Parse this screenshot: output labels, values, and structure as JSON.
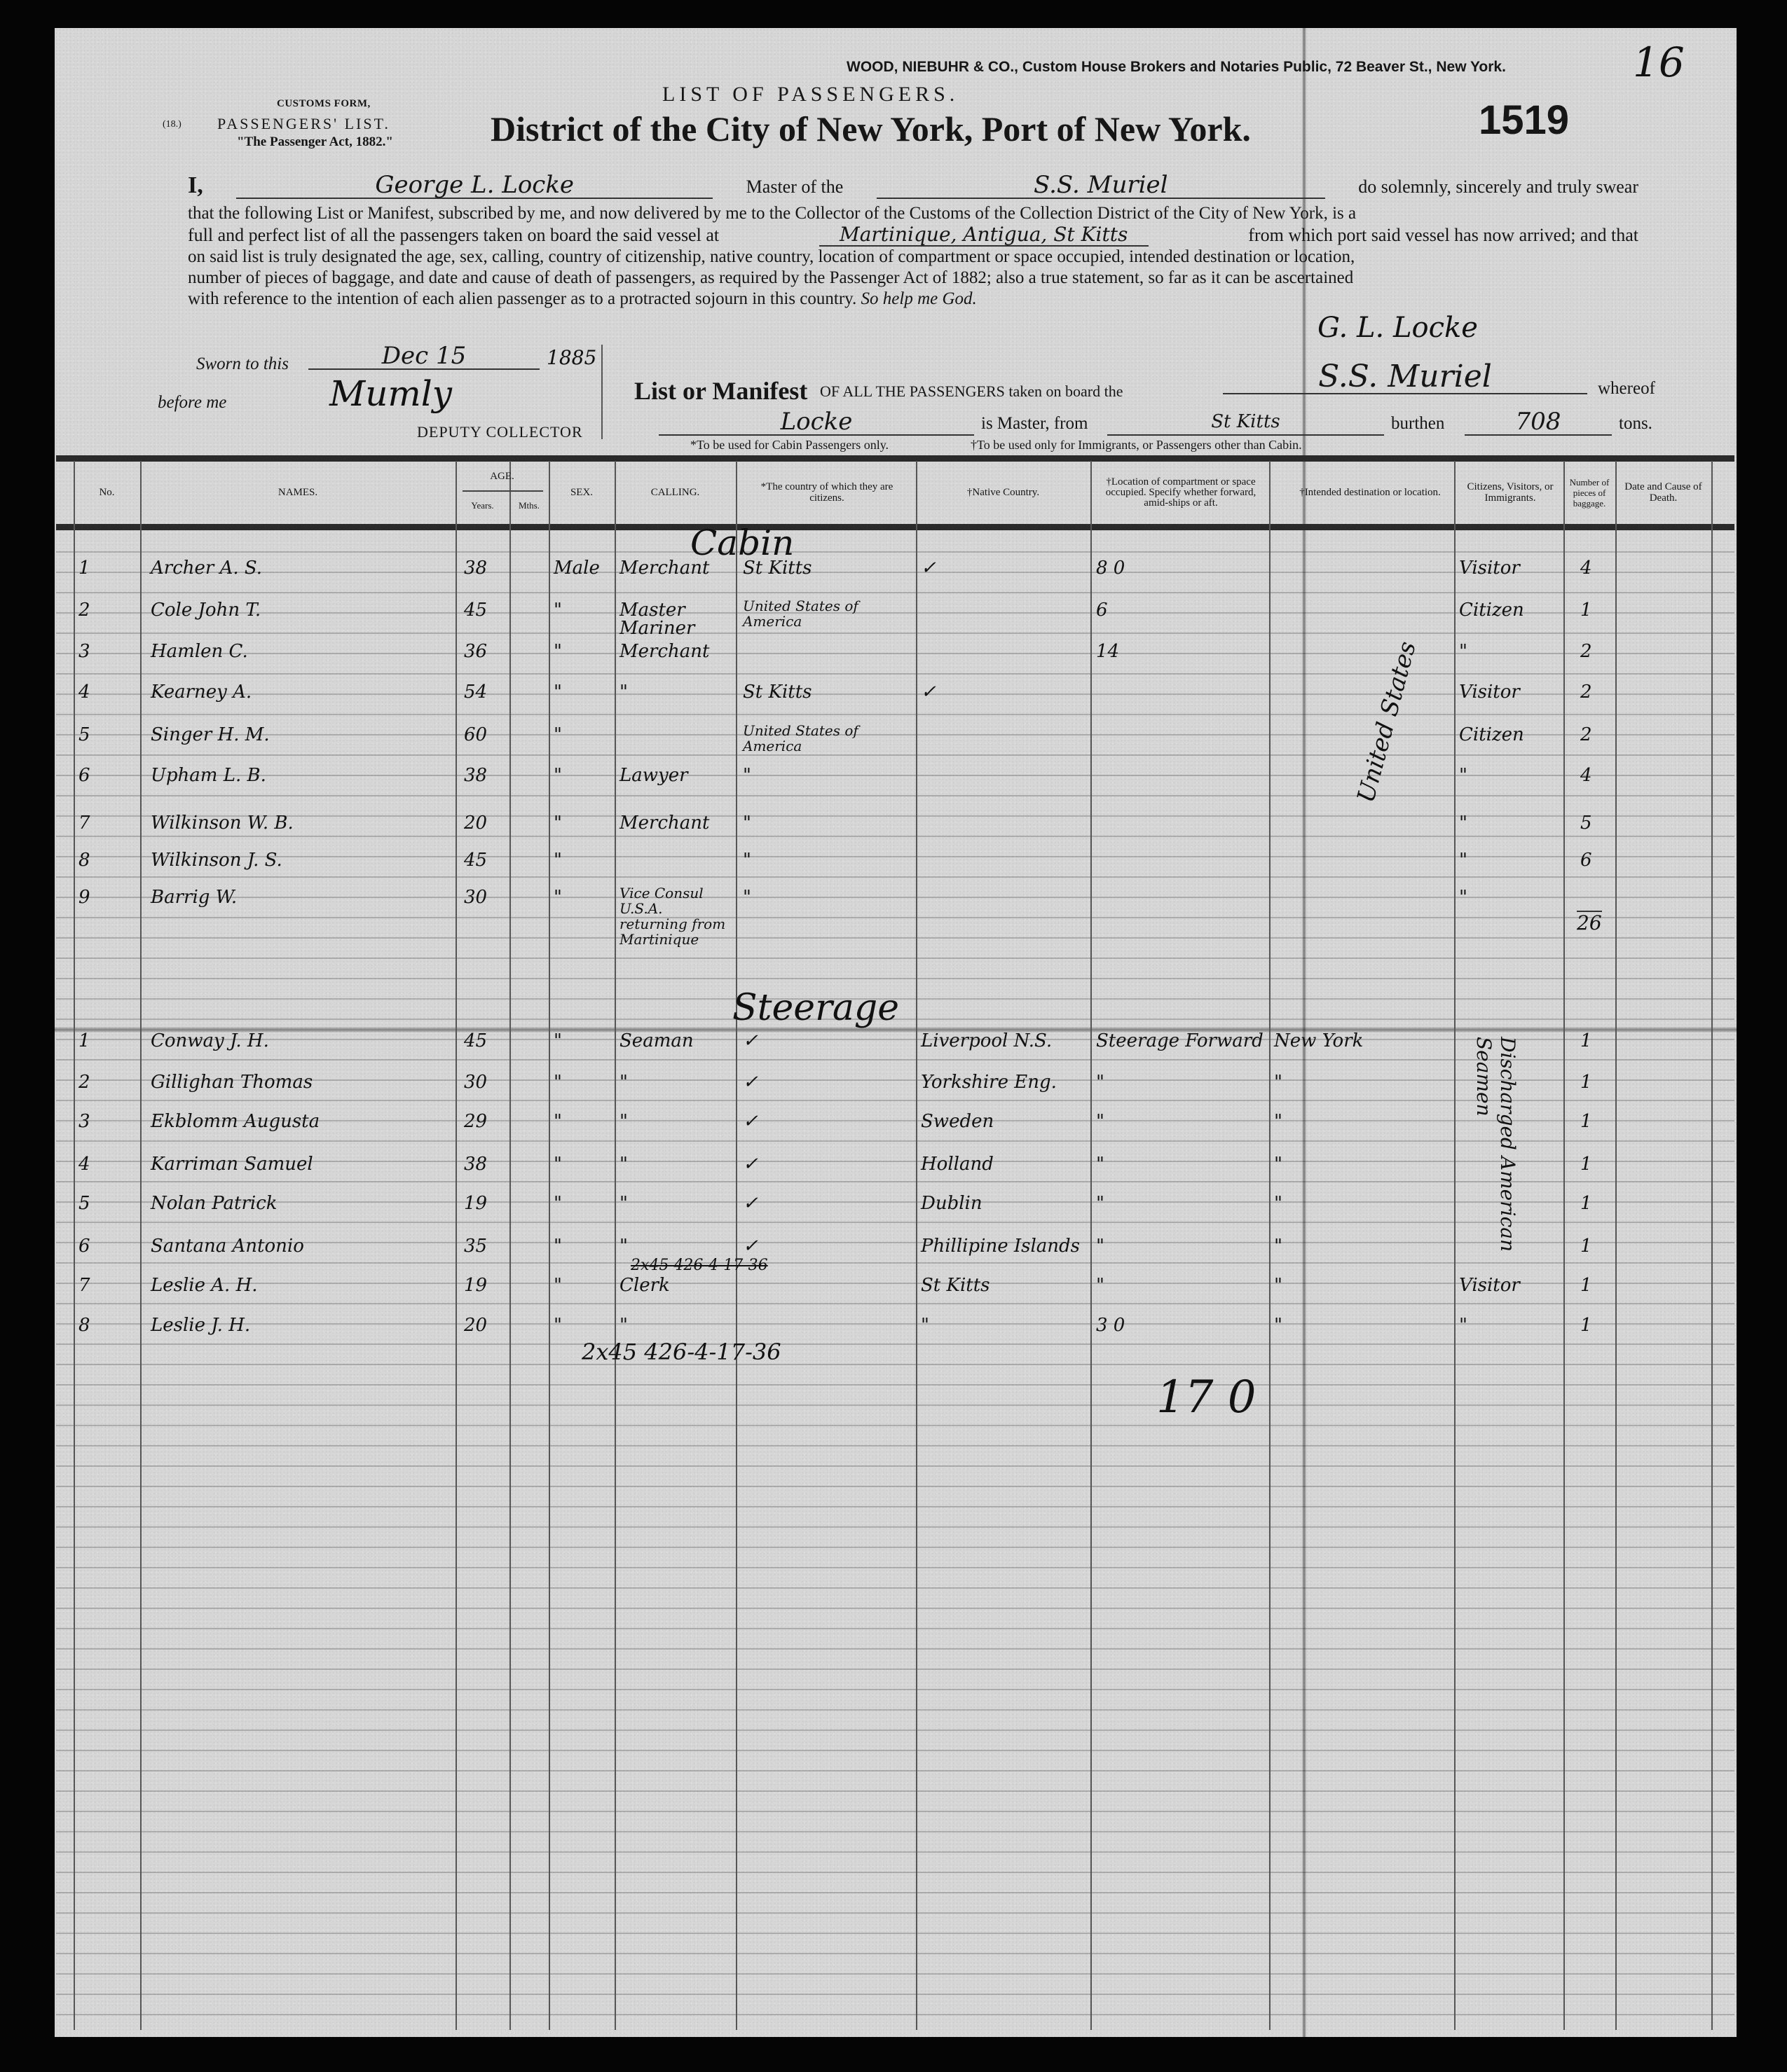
{
  "header": {
    "broker": "WOOD, NIEBUHR & CO., Custom House Brokers and Notaries Public, 72 Beaver St., New York.",
    "page_number": "16",
    "form_label": "CUSTOMS FORM,",
    "form_number": "(18.)",
    "form_name": "PASSENGERS' LIST.",
    "act": "\"The Passenger Act, 1882.\"",
    "list_title": "LIST OF PASSENGERS.",
    "district_title": "District of the City of New York, Port of New York.",
    "document_number": "1519"
  },
  "oath": {
    "prefix": "I,",
    "master_name": "George L. Locke",
    "master_of": "Master of the",
    "ship": "S.S. Muriel",
    "line1_end": "do solemnly, sincerely and truly swear",
    "line2": "that the following List or Manifest, subscribed by me, and now delivered by me to the Collector of the Customs of the Collection District of the City of New York, is a",
    "line3_start": "full and perfect list of all the passengers taken on board the said vessel at",
    "ports": "Martinique, Antigua, St Kitts",
    "line3_end": "from which port said vessel has now arrived; and that",
    "line4": "on said list is truly designated the age, sex, calling, country of citizenship, native country, location of compartment or space occupied, intended destination or location,",
    "line5": "number of pieces of baggage, and date and cause of death of passengers, as required by the Passenger Act of 1882; also a true statement, so far as it can be ascertained",
    "line6": "with reference to the intention of each alien passenger as to a protracted sojourn in this country.",
    "closing": "So help me God.",
    "master_signature": "G. L. Locke"
  },
  "sworn": {
    "label": "Sworn to this",
    "date": "Dec 15",
    "year": "1885",
    "before_me": "before me",
    "collector_signature": "Mumly",
    "title": "DEPUTY COLLECTOR"
  },
  "manifest": {
    "title": "List or Manifest",
    "of_all": "OF ALL THE PASSENGERS taken on board the",
    "ship": "S.S. Muriel",
    "whereof": "whereof",
    "master": "Locke",
    "is_master_from": "is Master, from",
    "from_port": "St Kitts",
    "burthen": "burthen",
    "tons_value": "708",
    "tons": "tons.",
    "note_cabin": "*To be used for Cabin Passengers only.",
    "note_immigrants": "†To be used only for Immigrants, or Passengers other than Cabin."
  },
  "columns": {
    "no": "No.",
    "names": "NAMES.",
    "age": "AGE.",
    "years": "Years.",
    "months": "Mths.",
    "sex": "SEX.",
    "calling": "CALLING.",
    "citizen_country": "*The country of which they are citizens.",
    "native_country": "†Native Country.",
    "location": "†Location of compartment or space occupied. Specify whether forward, amid-ships or aft.",
    "destination": "†Intended destination or location.",
    "status": "Citizens, Visitors, or Immigrants.",
    "baggage": "Number of pieces of baggage.",
    "death": "Date and Cause of Death."
  },
  "sections": {
    "cabin_label": "Cabin",
    "steerage_label": "Steerage"
  },
  "cabin_rows": [
    {
      "no": "1",
      "name": "Archer A. S.",
      "years": "38",
      "sex": "Male",
      "calling": "Merchant",
      "citizen_country": "St Kitts",
      "native_country": "✓",
      "location": "8 0",
      "status": "Visitor",
      "baggage": "4"
    },
    {
      "no": "2",
      "name": "Cole John T.",
      "years": "45",
      "sex": "\"",
      "calling": "Master Mariner",
      "citizen_country": "United States of America",
      "native_country": "",
      "location": "6",
      "status": "Citizen",
      "baggage": "1"
    },
    {
      "no": "3",
      "name": "Hamlen C.",
      "years": "36",
      "sex": "\"",
      "calling": "Merchant",
      "citizen_country": "",
      "native_country": "",
      "location": "14",
      "status": "\"",
      "baggage": "2"
    },
    {
      "no": "4",
      "name": "Kearney A.",
      "years": "54",
      "sex": "\"",
      "calling": "\"",
      "citizen_country": "St Kitts",
      "native_country": "✓",
      "location": "",
      "status": "Visitor",
      "baggage": "2"
    },
    {
      "no": "5",
      "name": "Singer H. M.",
      "years": "60",
      "sex": "\"",
      "calling": "",
      "citizen_country": "United States of America",
      "native_country": "",
      "location": "",
      "status": "Citizen",
      "baggage": "2"
    },
    {
      "no": "6",
      "name": "Upham L. B.",
      "years": "38",
      "sex": "\"",
      "calling": "Lawyer",
      "citizen_country": "\"",
      "native_country": "",
      "location": "",
      "status": "\"",
      "baggage": "4"
    },
    {
      "no": "7",
      "name": "Wilkinson W. B.",
      "years": "20",
      "sex": "\"",
      "calling": "Merchant",
      "citizen_country": "\"",
      "native_country": "",
      "location": "",
      "status": "\"",
      "baggage": "5"
    },
    {
      "no": "8",
      "name": "Wilkinson J. S.",
      "years": "45",
      "sex": "\"",
      "calling": "",
      "citizen_country": "\"",
      "native_country": "",
      "location": "",
      "status": "\"",
      "baggage": "6"
    },
    {
      "no": "9",
      "name": "Barrig W.",
      "years": "30",
      "sex": "\"",
      "calling": "Vice Consul U.S.A. returning from Martinique",
      "citizen_country": "\"",
      "native_country": "",
      "location": "",
      "status": "\"",
      "baggage": ""
    }
  ],
  "cabin_destination": "United States",
  "cabin_baggage_total": "26",
  "steerage_rows": [
    {
      "no": "1",
      "name": "Conway J. H.",
      "years": "45",
      "sex": "\"",
      "calling": "Seaman",
      "citizen_country": "✓",
      "native_country": "Liverpool N.S.",
      "location": "Steerage Forward",
      "destination": "New York",
      "status": "",
      "baggage": "1"
    },
    {
      "no": "2",
      "name": "Gillighan Thomas",
      "years": "30",
      "sex": "\"",
      "calling": "\"",
      "citizen_country": "✓",
      "native_country": "Yorkshire Eng.",
      "location": "\"",
      "destination": "\"",
      "status": "",
      "baggage": "1"
    },
    {
      "no": "3",
      "name": "Ekblomm Augusta",
      "years": "29",
      "sex": "\"",
      "calling": "\"",
      "citizen_country": "✓",
      "native_country": "Sweden",
      "location": "\"",
      "destination": "\"",
      "status": "",
      "baggage": "1"
    },
    {
      "no": "4",
      "name": "Karriman Samuel",
      "years": "38",
      "sex": "\"",
      "calling": "\"",
      "citizen_country": "✓",
      "native_country": "Holland",
      "location": "\"",
      "destination": "\"",
      "status": "",
      "baggage": "1"
    },
    {
      "no": "5",
      "name": "Nolan Patrick",
      "years": "19",
      "sex": "\"",
      "calling": "\"",
      "citizen_country": "✓",
      "native_country": "Dublin",
      "location": "\"",
      "destination": "\"",
      "status": "",
      "baggage": "1"
    },
    {
      "no": "6",
      "name": "Santana Antonio",
      "years": "35",
      "sex": "\"",
      "calling": "\"",
      "citizen_country": "✓",
      "native_country": "Phillipine Islands",
      "location": "\"",
      "destination": "\"",
      "status": "",
      "baggage": "1"
    },
    {
      "no": "7",
      "name": "Leslie A. H.",
      "years": "19",
      "sex": "\"",
      "calling": "Clerk",
      "citizen_country": "",
      "native_country": "St Kitts",
      "location": "\"",
      "destination": "\"",
      "status": "Visitor",
      "baggage": "1"
    },
    {
      "no": "8",
      "name": "Leslie J. H.",
      "years": "20",
      "sex": "\"",
      "calling": "\"",
      "citizen_country": "",
      "native_country": "\"",
      "location": "3 0",
      "destination": "\"",
      "status": "\"",
      "baggage": "1"
    }
  ],
  "steerage_status_note": "Discharged American Seamen",
  "steerage_annotation_crossed": "2x45 426-4-17-36",
  "steerage_annotation": "2x45 426-4-17-36",
  "grand_total": "17 0"
}
